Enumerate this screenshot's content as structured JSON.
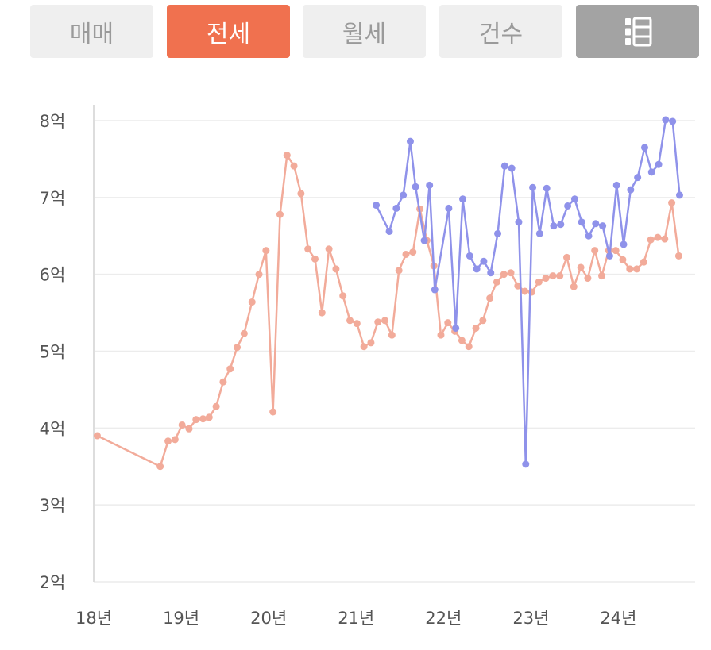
{
  "tabs": [
    {
      "label": "매매",
      "active": false
    },
    {
      "label": "전세",
      "active": true
    },
    {
      "label": "월세",
      "active": false
    },
    {
      "label": "건수",
      "active": false
    }
  ],
  "list_toggle_icon": "list-icon",
  "colors": {
    "accent": "#f0714f",
    "tab_inactive_bg": "#efefef",
    "tab_inactive_text": "#9a9a9a",
    "icon_tab_bg": "#a3a3a3",
    "series_salmon": "#f2ab9a",
    "series_purple": "#8f92ea"
  },
  "chart_data": {
    "type": "line",
    "y_unit": "억",
    "ylim": [
      2,
      8
    ],
    "y_ticks": [
      "2억",
      "3억",
      "4억",
      "5억",
      "6억",
      "7억",
      "8억"
    ],
    "xlim": [
      2018.0,
      2024.85
    ],
    "x_ticks": [
      "18년",
      "19년",
      "20년",
      "21년",
      "22년",
      "23년",
      "24년"
    ],
    "grid": "horizontal",
    "legend": "none",
    "series": [
      {
        "color": "#f2ab9a",
        "points": [
          [
            2018.04,
            3.9
          ],
          [
            2018.76,
            3.5
          ],
          [
            2018.85,
            3.83
          ],
          [
            2018.93,
            3.85
          ],
          [
            2019.01,
            4.04
          ],
          [
            2019.09,
            3.99
          ],
          [
            2019.17,
            4.11
          ],
          [
            2019.25,
            4.12
          ],
          [
            2019.32,
            4.14
          ],
          [
            2019.4,
            4.28
          ],
          [
            2019.48,
            4.6
          ],
          [
            2019.56,
            4.77
          ],
          [
            2019.64,
            5.05
          ],
          [
            2019.72,
            5.23
          ],
          [
            2019.81,
            5.64
          ],
          [
            2019.89,
            6.0
          ],
          [
            2019.97,
            6.31
          ],
          [
            2020.05,
            4.21
          ],
          [
            2020.13,
            6.78
          ],
          [
            2020.21,
            7.55
          ],
          [
            2020.29,
            7.41
          ],
          [
            2020.37,
            7.05
          ],
          [
            2020.45,
            6.33
          ],
          [
            2020.53,
            6.2
          ],
          [
            2020.61,
            5.5
          ],
          [
            2020.69,
            6.33
          ],
          [
            2020.77,
            6.07
          ],
          [
            2020.85,
            5.72
          ],
          [
            2020.93,
            5.4
          ],
          [
            2021.01,
            5.36
          ],
          [
            2021.09,
            5.06
          ],
          [
            2021.17,
            5.11
          ],
          [
            2021.25,
            5.38
          ],
          [
            2021.33,
            5.4
          ],
          [
            2021.41,
            5.21
          ],
          [
            2021.49,
            6.05
          ],
          [
            2021.57,
            6.26
          ],
          [
            2021.65,
            6.29
          ],
          [
            2021.73,
            6.85
          ],
          [
            2021.81,
            6.44
          ],
          [
            2021.89,
            6.11
          ],
          [
            2021.97,
            5.21
          ],
          [
            2022.05,
            5.37
          ],
          [
            2022.13,
            5.26
          ],
          [
            2022.21,
            5.14
          ],
          [
            2022.29,
            5.06
          ],
          [
            2022.37,
            5.3
          ],
          [
            2022.45,
            5.4
          ],
          [
            2022.53,
            5.69
          ],
          [
            2022.61,
            5.9
          ],
          [
            2022.69,
            6.0
          ],
          [
            2022.77,
            6.02
          ],
          [
            2022.85,
            5.85
          ],
          [
            2022.93,
            5.78
          ],
          [
            2023.01,
            5.77
          ],
          [
            2023.09,
            5.9
          ],
          [
            2023.17,
            5.95
          ],
          [
            2023.25,
            5.98
          ],
          [
            2023.33,
            5.98
          ],
          [
            2023.41,
            6.22
          ],
          [
            2023.49,
            5.84
          ],
          [
            2023.57,
            6.09
          ],
          [
            2023.65,
            5.95
          ],
          [
            2023.73,
            6.31
          ],
          [
            2023.81,
            5.98
          ],
          [
            2023.89,
            6.31
          ],
          [
            2023.97,
            6.31
          ],
          [
            2024.05,
            6.19
          ],
          [
            2024.13,
            6.07
          ],
          [
            2024.21,
            6.07
          ],
          [
            2024.29,
            6.16
          ],
          [
            2024.37,
            6.45
          ],
          [
            2024.45,
            6.48
          ],
          [
            2024.53,
            6.46
          ],
          [
            2024.61,
            6.93
          ],
          [
            2024.69,
            6.24
          ]
        ]
      },
      {
        "color": "#8f92ea",
        "points": [
          [
            2021.23,
            6.9
          ],
          [
            2021.38,
            6.56
          ],
          [
            2021.46,
            6.86
          ],
          [
            2021.54,
            7.03
          ],
          [
            2021.62,
            7.73
          ],
          [
            2021.68,
            7.14
          ],
          [
            2021.78,
            6.44
          ],
          [
            2021.84,
            7.16
          ],
          [
            2021.9,
            5.8
          ],
          [
            2022.06,
            6.86
          ],
          [
            2022.14,
            5.3
          ],
          [
            2022.22,
            6.98
          ],
          [
            2022.3,
            6.24
          ],
          [
            2022.38,
            6.07
          ],
          [
            2022.46,
            6.17
          ],
          [
            2022.54,
            6.02
          ],
          [
            2022.62,
            6.53
          ],
          [
            2022.7,
            7.41
          ],
          [
            2022.78,
            7.38
          ],
          [
            2022.86,
            6.68
          ],
          [
            2022.94,
            3.53
          ],
          [
            2023.02,
            7.13
          ],
          [
            2023.1,
            6.53
          ],
          [
            2023.18,
            7.12
          ],
          [
            2023.26,
            6.63
          ],
          [
            2023.34,
            6.65
          ],
          [
            2023.42,
            6.89
          ],
          [
            2023.5,
            6.98
          ],
          [
            2023.58,
            6.68
          ],
          [
            2023.66,
            6.5
          ],
          [
            2023.74,
            6.66
          ],
          [
            2023.82,
            6.63
          ],
          [
            2023.9,
            6.24
          ],
          [
            2023.98,
            7.16
          ],
          [
            2024.06,
            6.39
          ],
          [
            2024.14,
            7.1
          ],
          [
            2024.22,
            7.26
          ],
          [
            2024.3,
            7.65
          ],
          [
            2024.38,
            7.33
          ],
          [
            2024.46,
            7.43
          ],
          [
            2024.54,
            8.01
          ],
          [
            2024.62,
            7.99
          ],
          [
            2024.7,
            7.03
          ]
        ]
      }
    ]
  }
}
